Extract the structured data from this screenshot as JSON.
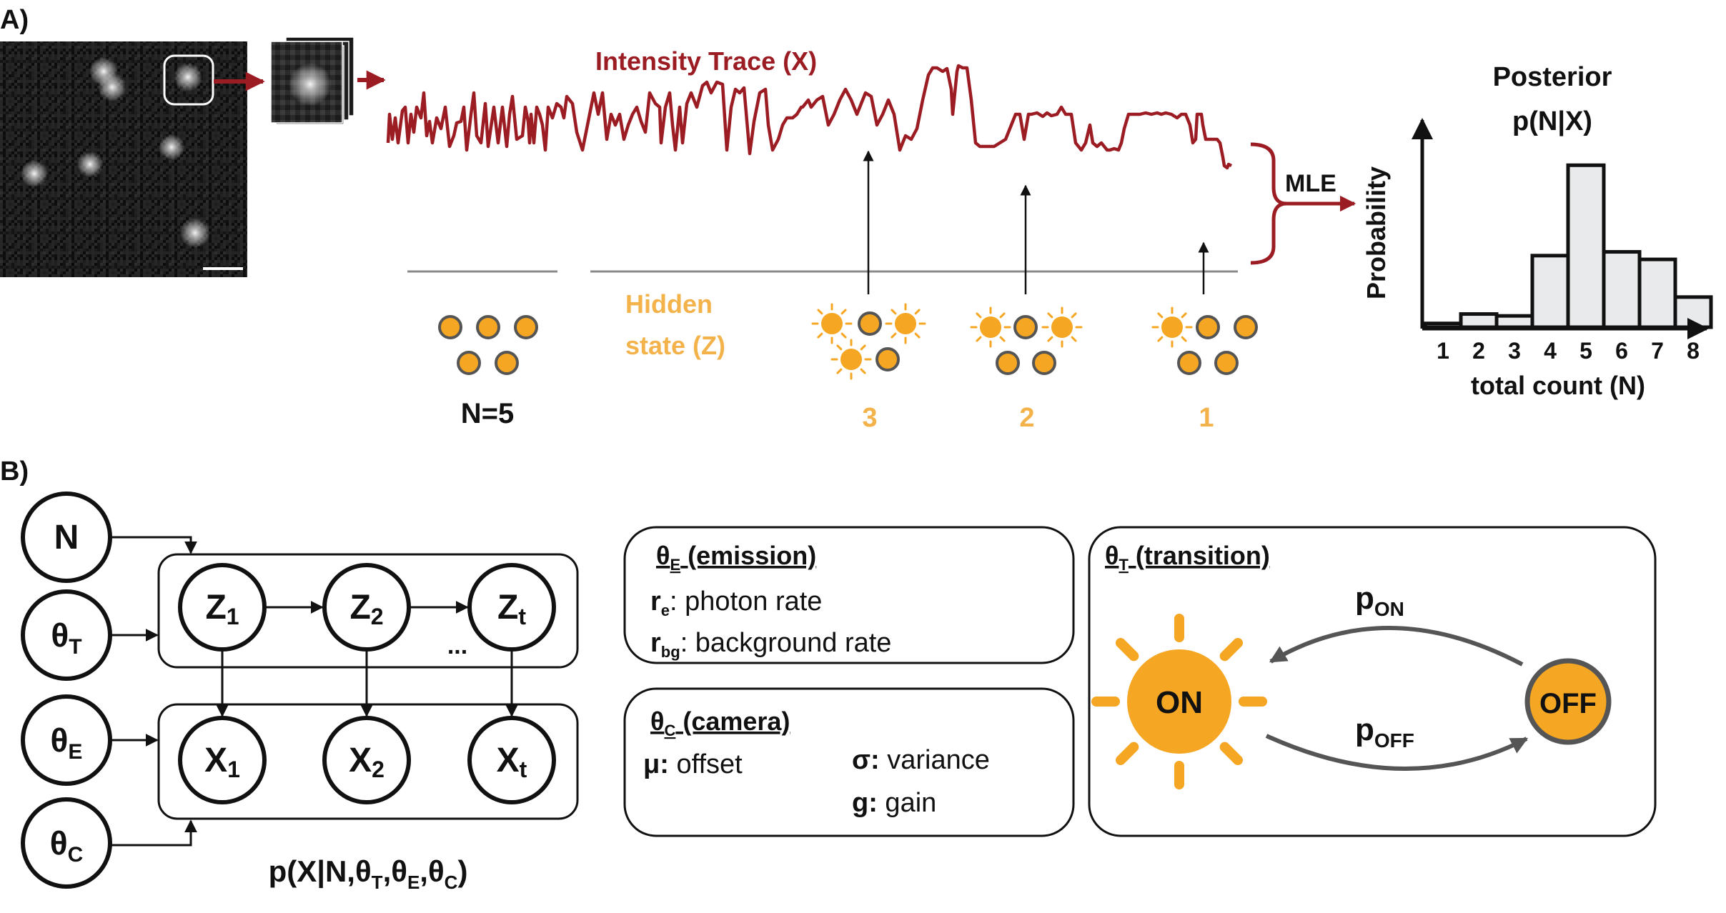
{
  "colors": {
    "trace": "#9b1c22",
    "orange": "#f5a623",
    "orange_text": "#f3b24a",
    "black": "#111111",
    "gray": "#8a8a8a",
    "dark_gray": "#555555",
    "hist_fill": "#e9eaec"
  },
  "panel_a": {
    "label": "A)",
    "trace_title": "Intensity Trace (X)",
    "hidden_state_line1": "Hidden",
    "hidden_state_line2": "state (Z)",
    "n_label": "N=5",
    "mle_label": "MLE",
    "state_counts": [
      "3",
      "2",
      "1"
    ],
    "posterior_line1": "Posterior",
    "posterior_line2": "p(N|X)",
    "ylabel": "Probability",
    "xlabel": "total count (N)"
  },
  "chart_data": {
    "type": "bar",
    "categories": [
      "1",
      "2",
      "3",
      "4",
      "5",
      "6",
      "7",
      "8"
    ],
    "values": [
      0.01,
      0.035,
      0.03,
      0.19,
      0.43,
      0.2,
      0.18,
      0.08
    ],
    "title": "Posterior p(N|X)",
    "xlabel": "total count (N)",
    "ylabel": "Probability",
    "ylim": [
      0,
      0.55
    ],
    "grid": false
  },
  "panel_b": {
    "label": "B)",
    "nodes": {
      "n": "N",
      "theta": "θ",
      "sub_t": "T",
      "sub_e": "E",
      "sub_c": "C",
      "z": "Z",
      "x": "X",
      "sub_1": "1",
      "sub_2": "2",
      "sub_time": "t",
      "ellipsis": "..."
    },
    "joint_prefix": "p(X|N,θ",
    "joint_sep": ",θ",
    "joint_suffix": ")",
    "emission": {
      "title_theta": "θ",
      "title_sub": "E",
      "title_rest": " (emission)",
      "re_symbol": "r",
      "re_sub": "e",
      "re_desc": ": photon rate",
      "rbg_symbol": "r",
      "rbg_sub": "bg",
      "rbg_desc": ": background rate"
    },
    "camera": {
      "title_theta": "θ",
      "title_sub": "C",
      "title_rest": " (camera)",
      "mu_symbol": "μ:",
      "mu_desc": " offset",
      "sigma_symbol": "σ:",
      "sigma_desc": " variance",
      "g_symbol": "g:",
      "g_desc": " gain"
    },
    "transition": {
      "title_theta": "θ",
      "title_sub": "T",
      "title_rest": " (transition)",
      "on_label": "ON",
      "off_label": "OFF",
      "p_on": "p",
      "p_on_sub": "ON",
      "p_off": "p",
      "p_off_sub": "OFF"
    }
  }
}
